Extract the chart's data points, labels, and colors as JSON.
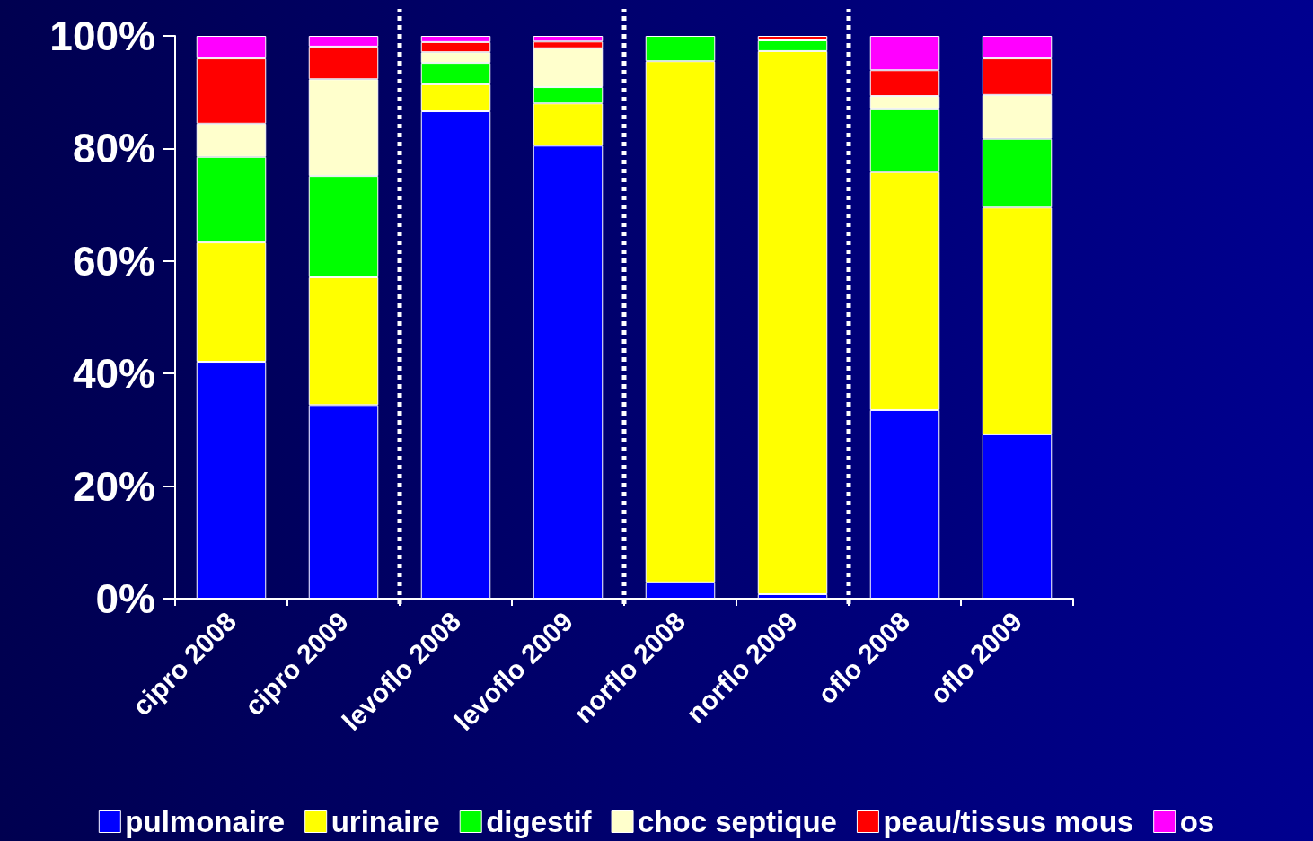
{
  "chart_data": {
    "type": "bar",
    "stacked": true,
    "categories": [
      "cipro 2008",
      "cipro 2009",
      "levoflo 2008",
      "levoflo 2009",
      "norflo 2008",
      "norflo 2009",
      "oflo 2008",
      "oflo 2009"
    ],
    "series": [
      {
        "name": "pulmonaire",
        "color": "#0000ff",
        "values": [
          42.1,
          34.4,
          86.6,
          80.5,
          2.9,
          0.8,
          33.5,
          29.2
        ]
      },
      {
        "name": "urinaire",
        "color": "#ffff00",
        "values": [
          21.2,
          22.7,
          4.8,
          7.5,
          92.6,
          96.5,
          42.3,
          40.3
        ]
      },
      {
        "name": "digestif",
        "color": "#00ff00",
        "values": [
          15.2,
          18.0,
          3.8,
          2.9,
          4.5,
          1.9,
          11.3,
          12.2
        ]
      },
      {
        "name": "choc septique",
        "color": "#ffffcc",
        "values": [
          5.9,
          17.2,
          1.9,
          6.9,
          0,
          0,
          2.2,
          7.8
        ]
      },
      {
        "name": "peau/tissus mous",
        "color": "#ff0000",
        "values": [
          11.6,
          5.8,
          1.8,
          1.2,
          0,
          0.8,
          4.6,
          6.5
        ]
      },
      {
        "name": "os",
        "color": "#ff00ff",
        "values": [
          4.0,
          1.9,
          1.1,
          1.0,
          0,
          0,
          6.1,
          4.0
        ]
      }
    ],
    "ylim": [
      0,
      100
    ],
    "yticks": [
      {
        "value": 0,
        "label": "0%"
      },
      {
        "value": 20,
        "label": "20%"
      },
      {
        "value": 40,
        "label": "40%"
      },
      {
        "value": 60,
        "label": "60%"
      },
      {
        "value": 80,
        "label": "80%"
      },
      {
        "value": 100,
        "label": "100%"
      }
    ],
    "grid": false,
    "legend": "bottom"
  }
}
